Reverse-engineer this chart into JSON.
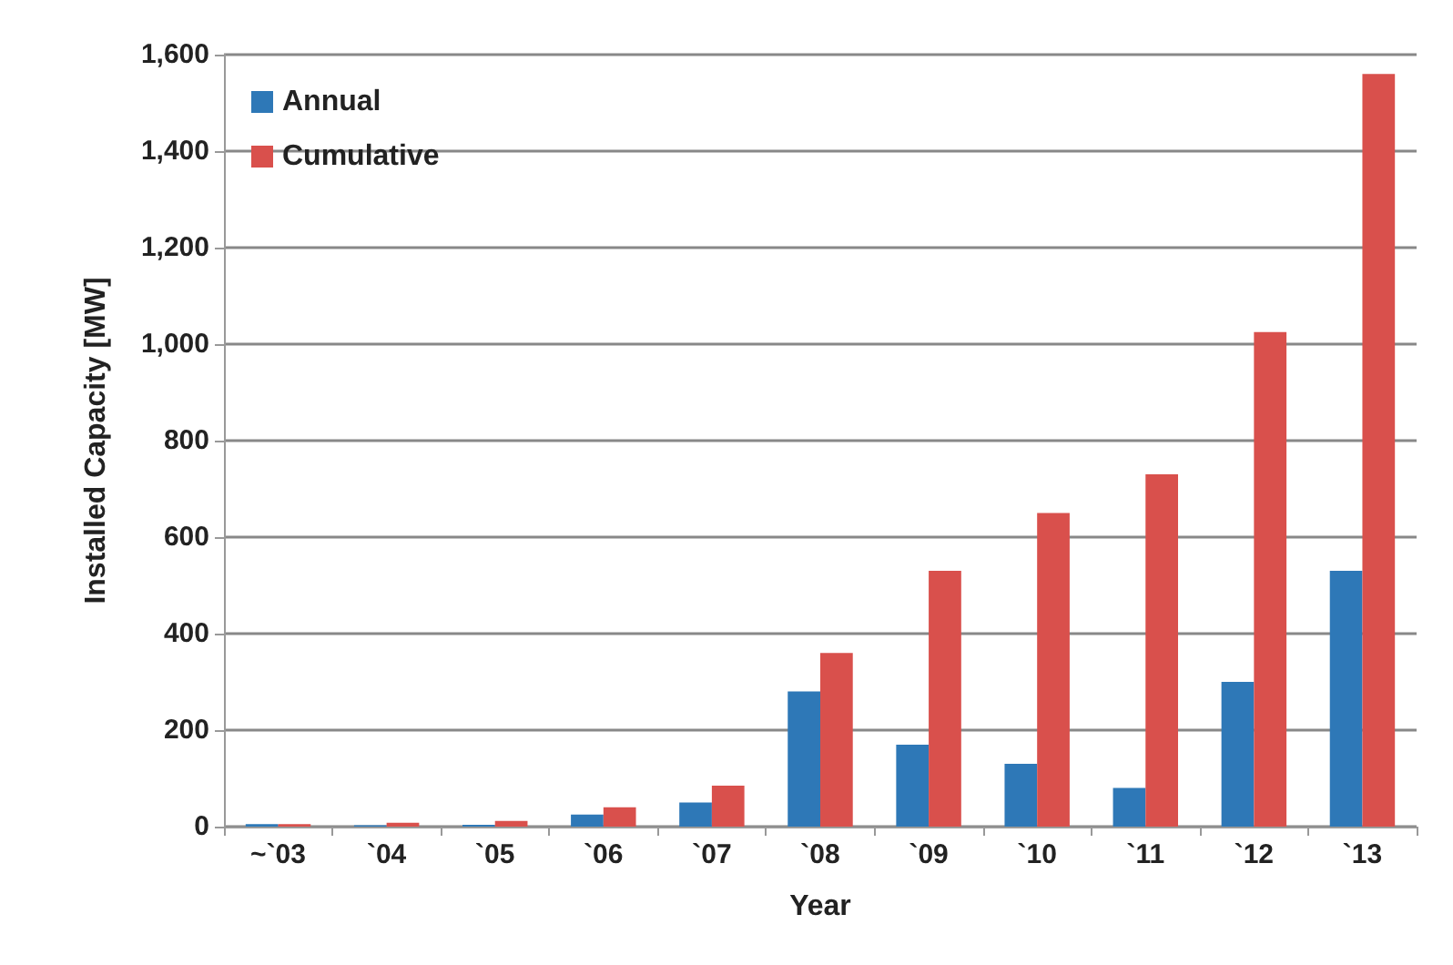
{
  "chart_data": {
    "type": "bar",
    "xlabel": "Year",
    "ylabel": "Installed Capacity [MW]",
    "categories": [
      "~`03",
      "`04",
      "`05",
      "`06",
      "`07",
      "`08",
      "`09",
      "`10",
      "`11",
      "`12",
      "`13"
    ],
    "series": [
      {
        "name": "Annual",
        "color": "#2e78b7",
        "values": [
          5,
          3,
          4,
          25,
          50,
          280,
          170,
          130,
          80,
          300,
          530
        ]
      },
      {
        "name": "Cumulative",
        "color": "#d9504c",
        "values": [
          5,
          8,
          12,
          40,
          85,
          360,
          530,
          650,
          730,
          1025,
          1560
        ]
      }
    ],
    "ylim": [
      0,
      1600
    ],
    "yticks": [
      0,
      200,
      400,
      600,
      800,
      {
        "value": 1000,
        "label": "1,000"
      },
      {
        "value": 1200,
        "label": "1,200"
      },
      {
        "value": 1400,
        "label": "1,400"
      },
      {
        "value": 1600,
        "label": "1,600"
      }
    ],
    "grid": "y",
    "legend": "top left"
  }
}
